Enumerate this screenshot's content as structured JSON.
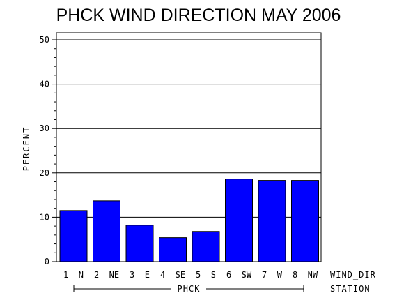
{
  "chart_data": {
    "type": "bar",
    "title": "PHCK WIND DIRECTION MAY 2006",
    "ylabel": "PERCENT",
    "xlabel": "WIND_DIR",
    "group_axis_label": "STATION",
    "group_label": "PHCK",
    "categories": [
      "1 N",
      "2 NE",
      "3 E",
      "4 SE",
      "5 S",
      "6 SW",
      "7 W",
      "8 NW"
    ],
    "values": [
      11.5,
      13.7,
      8.2,
      5.4,
      6.8,
      18.6,
      18.3,
      18.3
    ],
    "ylim": [
      0,
      50
    ],
    "yticks": [
      "0",
      "10",
      "20",
      "30",
      "40",
      "50"
    ],
    "grid": "horizontal",
    "bar_color": "#0000ff"
  }
}
